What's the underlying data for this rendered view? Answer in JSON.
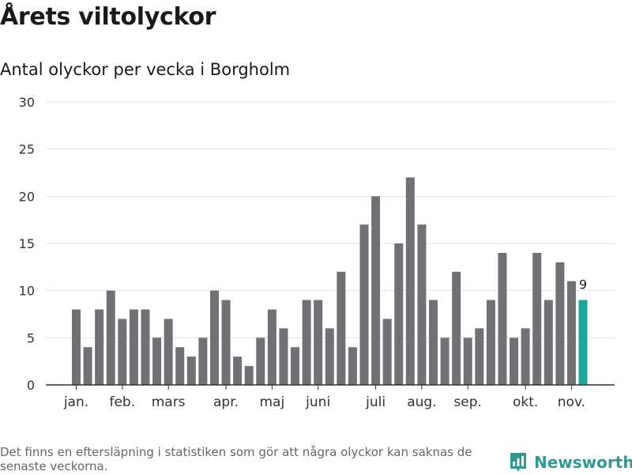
{
  "header": {
    "title": "Årets viltolyckor",
    "subtitle": "Antal olyckor per vecka i Borgholm"
  },
  "footer": {
    "note": "Det finns en eftersläpning i statistiken som gör att några olyckor kan saknas de senaste veckorna.",
    "brand": "Newsworthy",
    "logo_icon": "chart-logo-icon"
  },
  "colors": {
    "bar": "#717075",
    "highlight": "#1aa69b",
    "grid": "#e3e3e3",
    "axis": "#333333",
    "brand": "#2e9a92"
  },
  "chart_data": {
    "type": "bar",
    "title": "Antal olyckor per vecka i Borgholm",
    "xlabel": "",
    "ylabel": "",
    "ylim": [
      0,
      30
    ],
    "yticks": [
      0,
      5,
      10,
      15,
      20,
      25,
      30
    ],
    "grid": true,
    "values": [
      8,
      4,
      8,
      10,
      7,
      8,
      8,
      5,
      7,
      4,
      3,
      5,
      10,
      9,
      3,
      2,
      5,
      8,
      6,
      4,
      9,
      9,
      6,
      12,
      4,
      17,
      20,
      7,
      15,
      22,
      17,
      9,
      5,
      12,
      5,
      6,
      9,
      14,
      5,
      6,
      14,
      9,
      13,
      11,
      9
    ],
    "highlight_index": 44,
    "highlight_label": "9",
    "month_labels": [
      {
        "label": "jan.",
        "week": 1
      },
      {
        "label": "feb.",
        "week": 5
      },
      {
        "label": "mars",
        "week": 9
      },
      {
        "label": "apr.",
        "week": 14
      },
      {
        "label": "maj",
        "week": 18
      },
      {
        "label": "juni",
        "week": 22
      },
      {
        "label": "juli",
        "week": 27
      },
      {
        "label": "aug.",
        "week": 31
      },
      {
        "label": "sep.",
        "week": 35
      },
      {
        "label": "okt.",
        "week": 40
      },
      {
        "label": "nov.",
        "week": 44
      }
    ]
  }
}
